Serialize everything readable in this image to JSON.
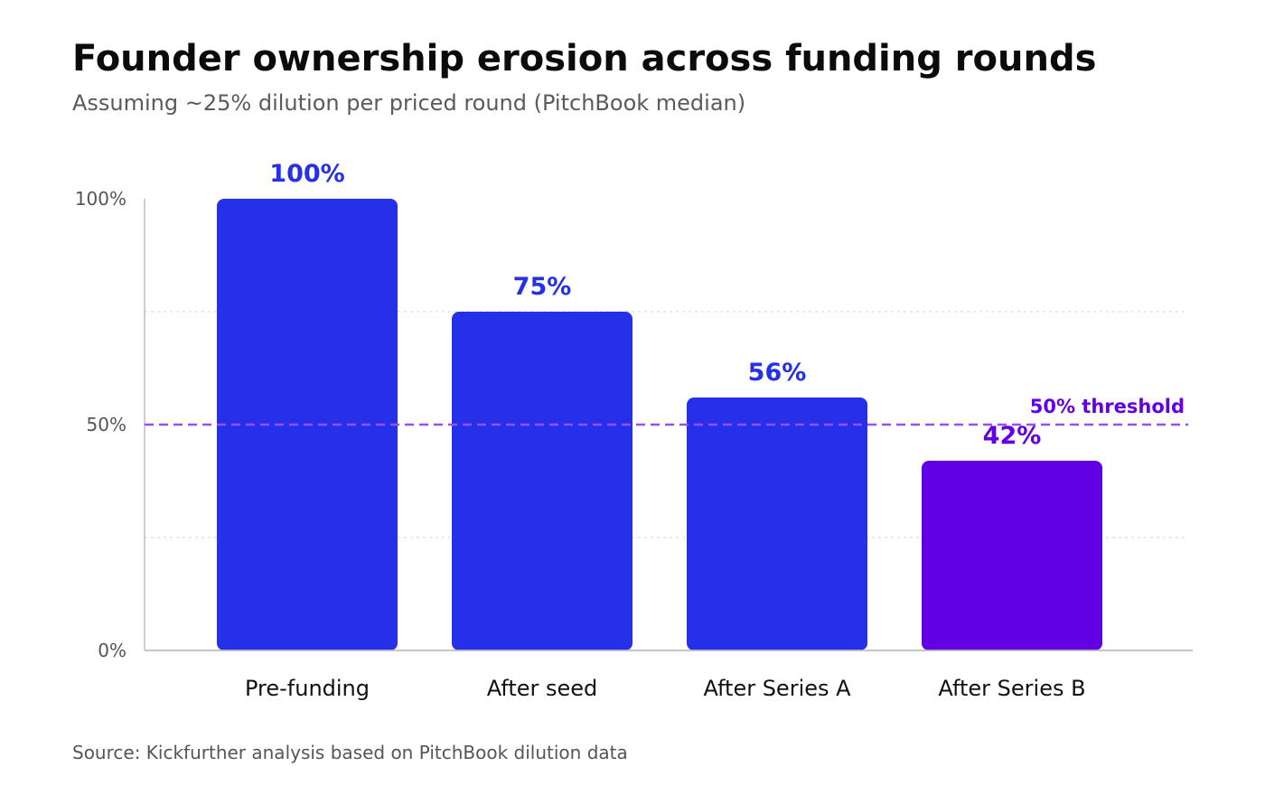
{
  "header": {
    "title": "Founder ownership erosion across funding rounds",
    "subtitle": "Assuming ~25% dilution per priced round (PitchBook median)"
  },
  "footer": {
    "source": "Source: Kickfurther analysis based on PitchBook dilution data"
  },
  "colors": {
    "bar_primary": "#2630e8",
    "bar_highlight": "#6200e4",
    "threshold_line": "#9650ec",
    "threshold_label": "#6200e4",
    "axis": "#bdbdbd",
    "gridline": "#dddddd",
    "tick_text": "#555555",
    "category_text": "#111111"
  },
  "chart_data": {
    "type": "bar",
    "categories": [
      "Pre-funding",
      "After seed",
      "After Series A",
      "After Series B"
    ],
    "values": [
      100,
      75,
      56,
      42
    ],
    "data_labels": [
      "100%",
      "75%",
      "56%",
      "42%"
    ],
    "highlight_index": 3,
    "ylim": [
      0,
      100
    ],
    "y_ticks": [
      {
        "value": 0,
        "label": "0%"
      },
      {
        "value": 50,
        "label": "50%"
      },
      {
        "value": 100,
        "label": "100%"
      }
    ],
    "gridlines": [
      25,
      75
    ],
    "threshold": {
      "value": 50,
      "label": "50% threshold"
    },
    "xlabel": "",
    "ylabel": "",
    "legend": "none"
  }
}
